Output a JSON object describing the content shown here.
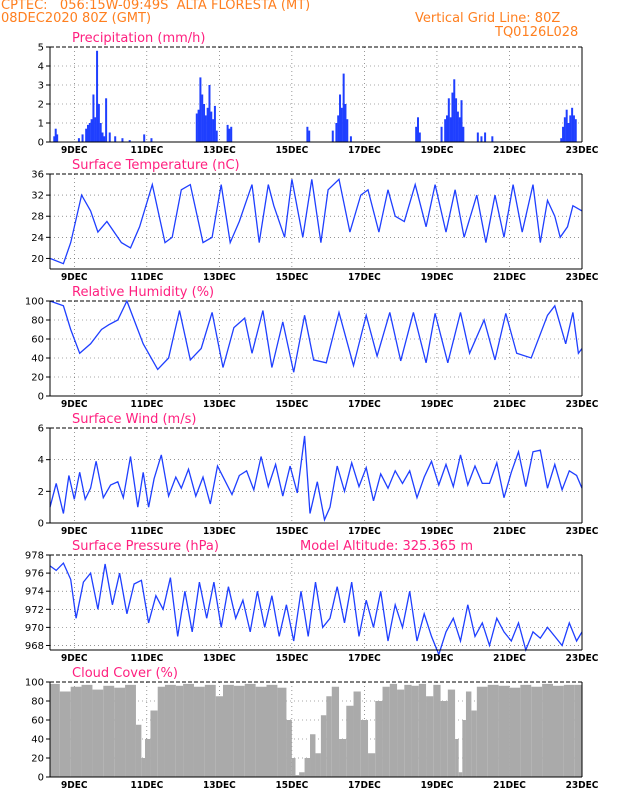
{
  "header": {
    "left_line1": "CPTEC:   056:15W-09:49S  ALTA FLORESTA (MT)",
    "left_line2": "08DEC2020 80Z (GMT)",
    "right_line1": "Vertical Grid Line: 80Z",
    "right_line2": "TQ0126L028"
  },
  "colors": {
    "header": "#ff7f1f",
    "title": "#ff1f7f",
    "series": "#1f3fff",
    "cloud": "#aaaaaa"
  },
  "x_ticks": [
    "9DEC",
    "11DEC",
    "13DEC",
    "15DEC",
    "17DEC",
    "19DEC",
    "21DEC",
    "23DEC"
  ],
  "chart_data": [
    {
      "type": "bar",
      "title": "Precipitation (mm/h)",
      "ylim": [
        0,
        5
      ],
      "yticks": [
        "0",
        "1",
        "2",
        "3",
        "4",
        "5"
      ],
      "x_range": [
        8.33,
        23
      ],
      "x": [
        8.42,
        8.46,
        8.5,
        9.1,
        9.2,
        9.3,
        9.35,
        9.4,
        9.45,
        9.5,
        9.55,
        9.6,
        9.65,
        9.7,
        9.75,
        9.8,
        9.85,
        9.95,
        10.1,
        10.3,
        10.5,
        10.9,
        11.1,
        12.35,
        12.4,
        12.45,
        12.5,
        12.55,
        12.6,
        12.65,
        12.7,
        12.75,
        12.8,
        12.85,
        12.9,
        13.2,
        13.25,
        13.3,
        15.4,
        15.45,
        16.1,
        16.2,
        16.25,
        16.3,
        16.35,
        16.4,
        16.45,
        16.5,
        16.6,
        18.4,
        18.45,
        18.5,
        19.1,
        19.2,
        19.25,
        19.3,
        19.35,
        19.4,
        19.45,
        19.5,
        19.55,
        19.6,
        19.65,
        19.7,
        20.1,
        20.2,
        20.3,
        20.5,
        22.4,
        22.45,
        22.5,
        22.55,
        22.6,
        22.65,
        22.7,
        22.75,
        22.8
      ],
      "values": [
        0.3,
        0.7,
        0.4,
        0.2,
        0.4,
        0.7,
        0.9,
        1.0,
        1.2,
        2.5,
        1.3,
        4.8,
        2.0,
        1.0,
        0.5,
        0.3,
        2.3,
        0.5,
        0.3,
        0.2,
        0.1,
        0.4,
        0.2,
        1.5,
        1.7,
        3.4,
        2.5,
        2.0,
        1.4,
        1.8,
        3.0,
        1.6,
        1.2,
        1.9,
        0.6,
        0.9,
        0.7,
        0.8,
        0.8,
        0.6,
        0.6,
        1.0,
        1.4,
        2.5,
        1.8,
        3.6,
        2.0,
        1.2,
        0.3,
        0.8,
        1.3,
        0.5,
        0.8,
        1.2,
        1.4,
        2.3,
        1.3,
        2.6,
        3.3,
        2.3,
        1.6,
        1.3,
        2.2,
        0.8,
        0.5,
        0.3,
        0.5,
        0.3,
        0.2,
        0.8,
        1.3,
        1.7,
        1.0,
        1.4,
        1.8,
        1.4,
        1.2
      ]
    },
    {
      "type": "line",
      "title": "Surface Temperature (nC)",
      "ylim": [
        18,
        36
      ],
      "yticks": [
        "20",
        "24",
        "28",
        "32",
        "36"
      ],
      "x_range": [
        8.33,
        23
      ],
      "x": [
        8.33,
        8.7,
        8.9,
        9.2,
        9.45,
        9.65,
        9.9,
        10.3,
        10.55,
        10.8,
        11.15,
        11.5,
        11.7,
        11.95,
        12.2,
        12.55,
        12.8,
        13.05,
        13.3,
        13.55,
        13.9,
        14.1,
        14.35,
        14.5,
        14.8,
        15.0,
        15.3,
        15.55,
        15.8,
        16.0,
        16.3,
        16.6,
        16.9,
        17.1,
        17.4,
        17.65,
        17.85,
        18.1,
        18.4,
        18.7,
        18.95,
        19.25,
        19.5,
        19.75,
        20.1,
        20.35,
        20.6,
        20.85,
        21.1,
        21.35,
        21.65,
        21.85,
        22.05,
        22.25,
        22.4,
        22.6,
        22.75,
        23.0
      ],
      "values": [
        20,
        19,
        23,
        32,
        29,
        25,
        27,
        23,
        22,
        26,
        34,
        23,
        24,
        33,
        34,
        23,
        24,
        34,
        23,
        27,
        34,
        23,
        34,
        30,
        24,
        35,
        24,
        35,
        23,
        33,
        35,
        25,
        32,
        33,
        25,
        33,
        28,
        27,
        34,
        26,
        34,
        25,
        33,
        24,
        32,
        23,
        32,
        24,
        34,
        25,
        34,
        23,
        31,
        28,
        24,
        26,
        30,
        29
      ]
    },
    {
      "type": "line",
      "title": "Relative Humidity (%)",
      "ylim": [
        0,
        100
      ],
      "yticks": [
        "0",
        "20",
        "40",
        "60",
        "80",
        "100"
      ],
      "x_range": [
        8.33,
        23
      ],
      "x": [
        8.33,
        8.7,
        8.9,
        9.15,
        9.45,
        9.75,
        9.95,
        10.2,
        10.45,
        10.9,
        11.3,
        11.6,
        11.9,
        12.2,
        12.5,
        12.8,
        13.1,
        13.4,
        13.7,
        13.9,
        14.2,
        14.45,
        14.75,
        15.05,
        15.35,
        15.6,
        15.95,
        16.3,
        16.7,
        17.05,
        17.35,
        17.7,
        18.0,
        18.35,
        18.7,
        18.95,
        19.3,
        19.65,
        19.9,
        20.3,
        20.6,
        20.9,
        21.2,
        21.6,
        22.05,
        22.25,
        22.55,
        22.75,
        22.9,
        23.0
      ],
      "values": [
        100,
        95,
        70,
        45,
        55,
        70,
        75,
        80,
        100,
        55,
        28,
        40,
        90,
        38,
        50,
        88,
        30,
        72,
        82,
        45,
        90,
        30,
        78,
        25,
        85,
        38,
        35,
        88,
        32,
        85,
        42,
        88,
        37,
        88,
        35,
        87,
        35,
        88,
        45,
        80,
        38,
        87,
        45,
        40,
        85,
        95,
        55,
        88,
        45,
        50
      ]
    },
    {
      "type": "line",
      "title": "Surface Wind (m/s)",
      "ylim": [
        0,
        6
      ],
      "yticks": [
        "0",
        "2",
        "4",
        "6"
      ],
      "x_range": [
        8.33,
        23
      ],
      "x": [
        8.33,
        8.5,
        8.7,
        8.85,
        9.0,
        9.15,
        9.3,
        9.45,
        9.6,
        9.8,
        10.0,
        10.2,
        10.35,
        10.55,
        10.75,
        10.9,
        11.05,
        11.2,
        11.4,
        11.6,
        11.8,
        11.95,
        12.15,
        12.35,
        12.55,
        12.75,
        12.95,
        13.15,
        13.35,
        13.55,
        13.75,
        13.95,
        14.15,
        14.35,
        14.55,
        14.75,
        14.95,
        15.15,
        15.35,
        15.5,
        15.7,
        15.9,
        16.05,
        16.25,
        16.45,
        16.65,
        16.85,
        17.05,
        17.25,
        17.45,
        17.65,
        17.85,
        18.05,
        18.25,
        18.45,
        18.65,
        18.85,
        19.05,
        19.25,
        19.45,
        19.65,
        19.85,
        20.05,
        20.25,
        20.45,
        20.65,
        20.85,
        21.05,
        21.25,
        21.45,
        21.65,
        21.85,
        22.05,
        22.25,
        22.45,
        22.65,
        22.85,
        23.0
      ],
      "values": [
        1.0,
        2.5,
        0.6,
        3.0,
        1.5,
        3.2,
        1.5,
        2.2,
        3.9,
        1.6,
        2.4,
        2.6,
        1.6,
        4.2,
        1.0,
        3.2,
        1.0,
        2.8,
        4.3,
        1.7,
        2.9,
        2.2,
        3.4,
        1.7,
        2.9,
        1.2,
        3.6,
        2.7,
        1.8,
        3.0,
        3.3,
        2.1,
        4.2,
        2.3,
        3.7,
        1.7,
        3.6,
        1.9,
        5.5,
        0.6,
        2.6,
        0.2,
        1.0,
        3.6,
        2.0,
        3.8,
        2.3,
        3.5,
        1.4,
        3.1,
        2.2,
        3.3,
        2.5,
        3.3,
        1.6,
        2.9,
        3.9,
        2.4,
        3.7,
        2.3,
        4.3,
        2.4,
        3.6,
        2.5,
        2.5,
        3.8,
        1.6,
        3.2,
        4.5,
        2.3,
        4.5,
        4.6,
        2.2,
        3.7,
        2.1,
        3.3,
        3.0,
        2.2
      ]
    },
    {
      "type": "line",
      "title": "Surface Pressure (hPa)",
      "annotation": "Model Altitude: 325.365 m",
      "ylim": [
        967.5,
        978
      ],
      "yticks": [
        "968",
        "970",
        "972",
        "974",
        "976",
        "978"
      ],
      "x_range": [
        8.33,
        23
      ],
      "x": [
        8.33,
        8.5,
        8.7,
        8.9,
        9.05,
        9.25,
        9.45,
        9.65,
        9.85,
        10.05,
        10.25,
        10.45,
        10.65,
        10.85,
        11.05,
        11.25,
        11.45,
        11.65,
        11.85,
        12.05,
        12.25,
        12.45,
        12.65,
        12.85,
        13.05,
        13.25,
        13.45,
        13.65,
        13.85,
        14.05,
        14.25,
        14.45,
        14.65,
        14.85,
        15.05,
        15.25,
        15.45,
        15.65,
        15.85,
        16.05,
        16.25,
        16.45,
        16.65,
        16.85,
        17.05,
        17.25,
        17.45,
        17.65,
        17.85,
        18.05,
        18.25,
        18.45,
        18.65,
        18.85,
        19.05,
        19.25,
        19.45,
        19.65,
        19.85,
        20.05,
        20.25,
        20.45,
        20.65,
        20.85,
        21.05,
        21.25,
        21.45,
        21.65,
        21.85,
        22.05,
        22.25,
        22.45,
        22.65,
        22.85,
        23.0
      ],
      "values": [
        976.8,
        976.3,
        977.1,
        975.3,
        971.0,
        975.0,
        976.0,
        972.0,
        977.0,
        972.5,
        976.0,
        971.5,
        974.8,
        975.2,
        970.5,
        973.5,
        972.0,
        975.5,
        969.0,
        974.0,
        969.5,
        975.0,
        971.0,
        975.0,
        970.0,
        974.5,
        971.0,
        973.0,
        969.5,
        974.0,
        970.0,
        973.5,
        969.0,
        972.5,
        968.5,
        974.0,
        969.0,
        975.0,
        970.0,
        971.0,
        974.5,
        970.5,
        975.0,
        969.0,
        973.0,
        970.0,
        974.0,
        968.5,
        972.5,
        970.0,
        974.0,
        968.5,
        971.5,
        969.0,
        967.0,
        969.5,
        971.0,
        968.5,
        972.5,
        969.0,
        970.5,
        968.0,
        971.0,
        969.5,
        968.5,
        970.5,
        967.5,
        969.5,
        968.8,
        970.0,
        969.0,
        968.0,
        970.5,
        968.5,
        969.5
      ]
    },
    {
      "type": "bar",
      "title": "Cloud Cover (%)",
      "ylim": [
        0,
        100
      ],
      "yticks": [
        "0",
        "20",
        "40",
        "60",
        "80",
        "100"
      ],
      "x_range": [
        8.33,
        23
      ],
      "x": [
        8.33,
        8.6,
        8.9,
        9.2,
        9.5,
        9.8,
        10.1,
        10.4,
        10.7,
        10.85,
        10.95,
        11.1,
        11.3,
        11.5,
        11.8,
        12.0,
        12.3,
        12.6,
        12.9,
        13.1,
        13.4,
        13.7,
        14.0,
        14.3,
        14.6,
        14.85,
        15.0,
        15.1,
        15.2,
        15.35,
        15.5,
        15.65,
        15.8,
        15.95,
        16.1,
        16.3,
        16.5,
        16.7,
        16.9,
        17.1,
        17.3,
        17.5,
        17.7,
        17.9,
        18.1,
        18.3,
        18.5,
        18.7,
        18.9,
        19.1,
        19.3,
        19.5,
        19.6,
        19.7,
        19.8,
        19.95,
        20.1,
        20.4,
        20.7,
        21.0,
        21.3,
        21.6,
        21.9,
        22.2,
        22.5,
        22.8
      ],
      "values": [
        98,
        90,
        95,
        97,
        92,
        96,
        94,
        97,
        55,
        20,
        40,
        70,
        95,
        97,
        96,
        98,
        95,
        97,
        85,
        97,
        96,
        98,
        95,
        97,
        94,
        60,
        20,
        2,
        5,
        20,
        45,
        25,
        65,
        85,
        95,
        40,
        75,
        90,
        60,
        25,
        80,
        95,
        98,
        92,
        97,
        96,
        98,
        85,
        97,
        80,
        92,
        40,
        5,
        60,
        90,
        70,
        95,
        97,
        96,
        94,
        97,
        95,
        98,
        96,
        97,
        97
      ]
    }
  ]
}
